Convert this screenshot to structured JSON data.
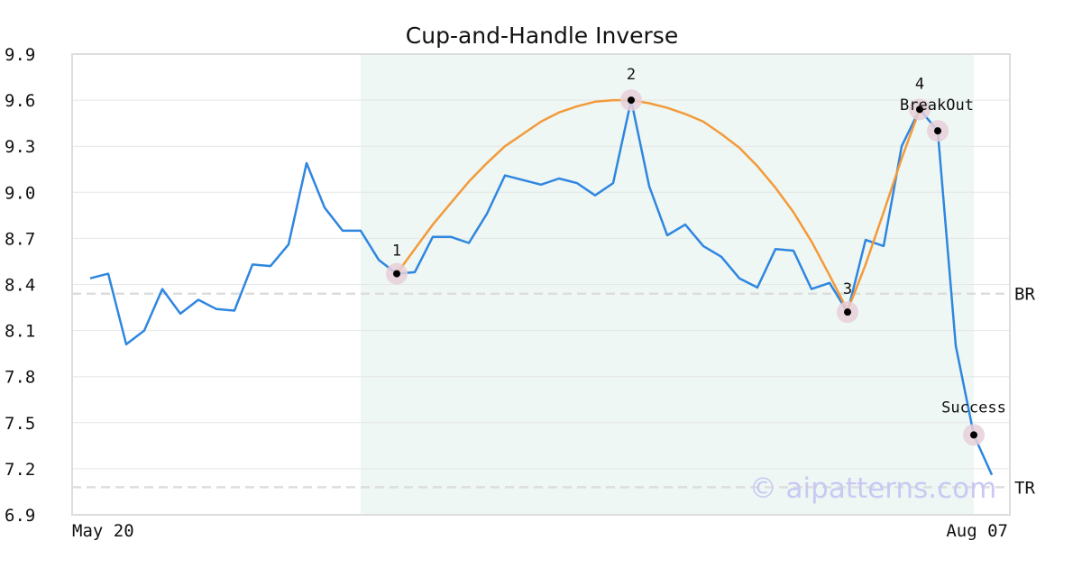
{
  "chart_data": {
    "type": "line",
    "title": "Cup-and-Handle Inverse",
    "xlabel": "",
    "ylabel": "",
    "ylim": [
      6.9,
      9.9
    ],
    "yticks": [
      "9.9",
      "9.6",
      "9.3",
      "9.0",
      "8.7",
      "8.4",
      "8.1",
      "7.8",
      "7.5",
      "7.2",
      "6.9"
    ],
    "xtick_labels": [
      "May 20",
      "Aug 07"
    ],
    "grid": true,
    "series": [
      {
        "color": "#2f86e0",
        "values": [
          8.44,
          8.47,
          8.01,
          8.1,
          8.37,
          8.21,
          8.3,
          8.24,
          8.23,
          8.53,
          8.52,
          8.66,
          9.19,
          8.9,
          8.75,
          8.75,
          8.56,
          8.47,
          8.48,
          8.71,
          8.71,
          8.67,
          8.86,
          9.11,
          9.08,
          9.05,
          9.09,
          9.06,
          8.98,
          9.06,
          9.6,
          9.04,
          8.72,
          8.79,
          8.65,
          8.58,
          8.44,
          8.38,
          8.63,
          8.62,
          8.37,
          8.41,
          8.22,
          8.69,
          8.65,
          9.3,
          9.54,
          9.4,
          8.0,
          7.42,
          7.16
        ]
      },
      {
        "color": "#f39a3a",
        "note": "cup arc",
        "x": [
          17,
          18,
          19,
          20,
          21,
          22,
          23,
          24,
          25,
          26,
          27,
          28,
          29,
          30,
          31,
          32,
          33,
          34,
          35,
          36,
          37,
          38,
          39,
          40,
          41,
          42,
          43,
          44,
          45,
          46
        ],
        "values": [
          8.47,
          8.63,
          8.79,
          8.93,
          9.07,
          9.19,
          9.3,
          9.38,
          9.46,
          9.52,
          9.56,
          9.59,
          9.6,
          9.6,
          9.58,
          9.55,
          9.51,
          9.46,
          9.38,
          9.29,
          9.17,
          9.03,
          8.87,
          8.68,
          8.46,
          8.23,
          8.53,
          8.87,
          9.22,
          9.54
        ]
      }
    ],
    "highlight_region": {
      "x_start": 15,
      "x_end": 49,
      "color": "#eef7f3"
    },
    "reference_lines": [
      {
        "label": "BR",
        "y": 8.34,
        "color": "#dddddd"
      },
      {
        "label": "TR",
        "y": 7.08,
        "color": "#dddddd"
      }
    ],
    "annotations": [
      {
        "label": "1",
        "x": 17,
        "y": 8.47
      },
      {
        "label": "2",
        "x": 30,
        "y": 9.6
      },
      {
        "label": "3",
        "x": 42,
        "y": 8.22
      },
      {
        "label": "4",
        "x": 46,
        "y": 9.54
      },
      {
        "label": "BreakOut",
        "x": 47,
        "y": 9.4
      },
      {
        "label": "Success",
        "x": 49,
        "y": 7.42
      }
    ]
  },
  "watermark": "© aipatterns.com",
  "colors": {
    "axis": "#dddddd",
    "grid": "#e6e6e6",
    "marker_halo": "#e6cfd8",
    "marker_dot": "#000000"
  }
}
